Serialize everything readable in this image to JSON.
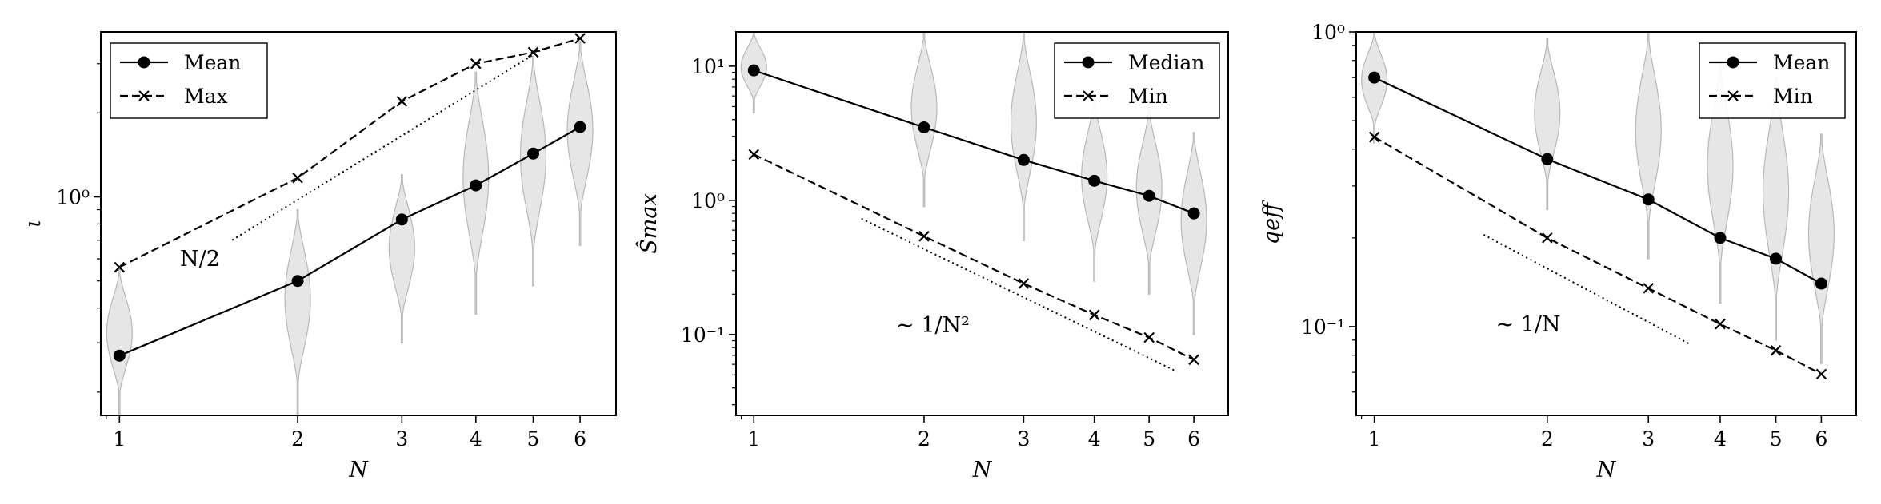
{
  "chart_data": [
    {
      "type": "line",
      "xscale": "log",
      "yscale": "log",
      "xlabel": "N",
      "ylabel": "ι",
      "xlim": [
        0.93,
        6.9
      ],
      "ylim": [
        0.165,
        3.9
      ],
      "x_ticks": [
        1,
        2,
        3,
        4,
        5,
        6
      ],
      "y_ticks": [
        {
          "value": 1,
          "label": "10⁰"
        }
      ],
      "legend_position": "top-left",
      "grid": false,
      "series": [
        {
          "name": "Mean",
          "marker": "circle",
          "linestyle": "solid",
          "x": [
            1,
            2,
            3,
            4,
            5,
            6
          ],
          "y": [
            0.27,
            0.5,
            0.83,
            1.1,
            1.43,
            1.78
          ]
        },
        {
          "name": "Max",
          "marker": "x",
          "linestyle": "dashed",
          "x": [
            1,
            2,
            3,
            4,
            5,
            6
          ],
          "y": [
            0.56,
            1.17,
            2.2,
            3.0,
            3.3,
            3.7
          ]
        }
      ],
      "reference_lines": [
        {
          "label": "N/2",
          "linestyle": "dotted",
          "x": [
            1.55,
            5.2
          ],
          "y": [
            0.7,
            3.4
          ]
        }
      ],
      "violins": [
        {
          "x": 1,
          "y_min": 0.165,
          "y_max": 0.55
        },
        {
          "x": 2,
          "y_min": 0.165,
          "y_max": 0.9
        },
        {
          "x": 3,
          "y_min": 0.3,
          "y_max": 1.2
        },
        {
          "x": 4,
          "y_min": 0.38,
          "y_max": 2.8
        },
        {
          "x": 5,
          "y_min": 0.48,
          "y_max": 3.2
        },
        {
          "x": 6,
          "y_min": 0.67,
          "y_max": 3.6
        }
      ]
    },
    {
      "type": "line",
      "xscale": "log",
      "yscale": "log",
      "xlabel": "N",
      "ylabel": "Ŝmax",
      "xlim": [
        0.93,
        6.9
      ],
      "ylim": [
        0.025,
        18
      ],
      "x_ticks": [
        1,
        2,
        3,
        4,
        5,
        6
      ],
      "y_ticks": [
        {
          "value": 0.1,
          "label": "10⁻¹"
        },
        {
          "value": 1,
          "label": "10⁰"
        },
        {
          "value": 10,
          "label": "10¹"
        }
      ],
      "legend_position": "top-right",
      "grid": false,
      "series": [
        {
          "name": "Median",
          "marker": "circle",
          "linestyle": "solid",
          "x": [
            1,
            2,
            3,
            4,
            5,
            6
          ],
          "y": [
            9.3,
            3.5,
            2.0,
            1.4,
            1.08,
            0.8
          ]
        },
        {
          "name": "Min",
          "marker": "x",
          "linestyle": "dashed",
          "x": [
            1,
            2,
            3,
            4,
            5,
            6
          ],
          "y": [
            2.2,
            0.54,
            0.24,
            0.14,
            0.095,
            0.065
          ]
        }
      ],
      "reference_lines": [
        {
          "label": "∼ 1/N²",
          "linestyle": "dotted",
          "x": [
            1.55,
            5.6
          ],
          "y": [
            0.73,
            0.053
          ]
        }
      ],
      "violins": [
        {
          "x": 1,
          "y_min": 4.5,
          "y_max": 18
        },
        {
          "x": 2,
          "y_min": 0.9,
          "y_max": 18
        },
        {
          "x": 3,
          "y_min": 0.5,
          "y_max": 18
        },
        {
          "x": 4,
          "y_min": 0.25,
          "y_max": 6.0
        },
        {
          "x": 5,
          "y_min": 0.2,
          "y_max": 5.0
        },
        {
          "x": 6,
          "y_min": 0.1,
          "y_max": 3.2
        }
      ]
    },
    {
      "type": "line",
      "xscale": "log",
      "yscale": "log",
      "xlabel": "N",
      "ylabel": "qeff",
      "xlim": [
        0.93,
        6.9
      ],
      "ylim": [
        0.05,
        1.0
      ],
      "x_ticks": [
        1,
        2,
        3,
        4,
        5,
        6
      ],
      "y_ticks": [
        {
          "value": 0.1,
          "label": "10⁻¹"
        },
        {
          "value": 1,
          "label": "10⁰"
        }
      ],
      "legend_position": "top-right",
      "grid": false,
      "series": [
        {
          "name": "Mean",
          "marker": "circle",
          "linestyle": "solid",
          "x": [
            1,
            2,
            3,
            4,
            5,
            6
          ],
          "y": [
            0.7,
            0.37,
            0.27,
            0.2,
            0.17,
            0.14
          ]
        },
        {
          "name": "Min",
          "marker": "x",
          "linestyle": "dashed",
          "x": [
            1,
            2,
            3,
            4,
            5,
            6
          ],
          "y": [
            0.44,
            0.2,
            0.135,
            0.102,
            0.083,
            0.069
          ]
        }
      ],
      "reference_lines": [
        {
          "label": "∼ 1/N",
          "linestyle": "dotted",
          "x": [
            1.55,
            3.55
          ],
          "y": [
            0.205,
            0.087
          ]
        }
      ],
      "violins": [
        {
          "x": 1,
          "y_min": 0.42,
          "y_max": 1.0
        },
        {
          "x": 2,
          "y_min": 0.25,
          "y_max": 0.95
        },
        {
          "x": 3,
          "y_min": 0.17,
          "y_max": 1.0
        },
        {
          "x": 4,
          "y_min": 0.12,
          "y_max": 0.8
        },
        {
          "x": 5,
          "y_min": 0.09,
          "y_max": 0.7
        },
        {
          "x": 6,
          "y_min": 0.075,
          "y_max": 0.45
        }
      ]
    }
  ]
}
